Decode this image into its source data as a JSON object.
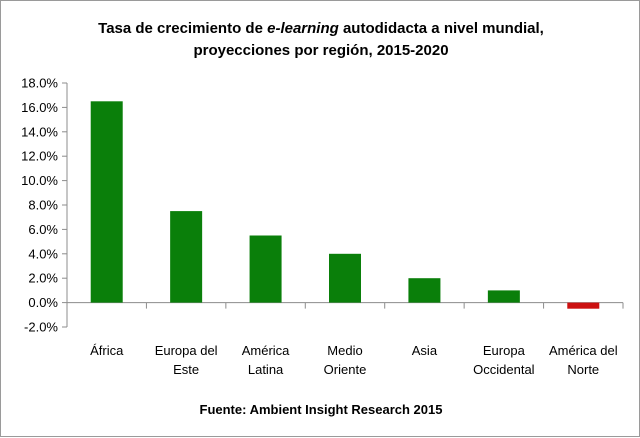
{
  "chart_data": {
    "type": "bar",
    "title": {
      "line1_before": "Tasa de crecimiento de ",
      "line1_italic": "e-learning",
      "line1_after": " autodidacta a nivel mundial,",
      "line2": "proyecciones por región, 2015-2020"
    },
    "categories": [
      [
        "África"
      ],
      [
        "Europa del",
        "Este"
      ],
      [
        "América",
        "Latina"
      ],
      [
        "Medio",
        "Oriente"
      ],
      [
        "Asia"
      ],
      [
        "Europa",
        "Occidental"
      ],
      [
        "América del",
        "Norte"
      ]
    ],
    "values": [
      16.5,
      7.5,
      5.5,
      4.0,
      2.0,
      1.0,
      -0.5
    ],
    "ylim": [
      -2.0,
      18.0
    ],
    "yticks": [
      "-2.0%",
      "0.0%",
      "2.0%",
      "4.0%",
      "6.0%",
      "8.0%",
      "10.0%",
      "12.0%",
      "14.0%",
      "16.0%",
      "18.0%"
    ],
    "xlabel": "",
    "ylabel": "",
    "grid": false,
    "legend": "none",
    "colors": {
      "positive": "#0a7f0a",
      "negative": "#cc1111",
      "axis": "#8c8c8c"
    },
    "source": "Fuente: Ambient Insight Research 2015"
  }
}
